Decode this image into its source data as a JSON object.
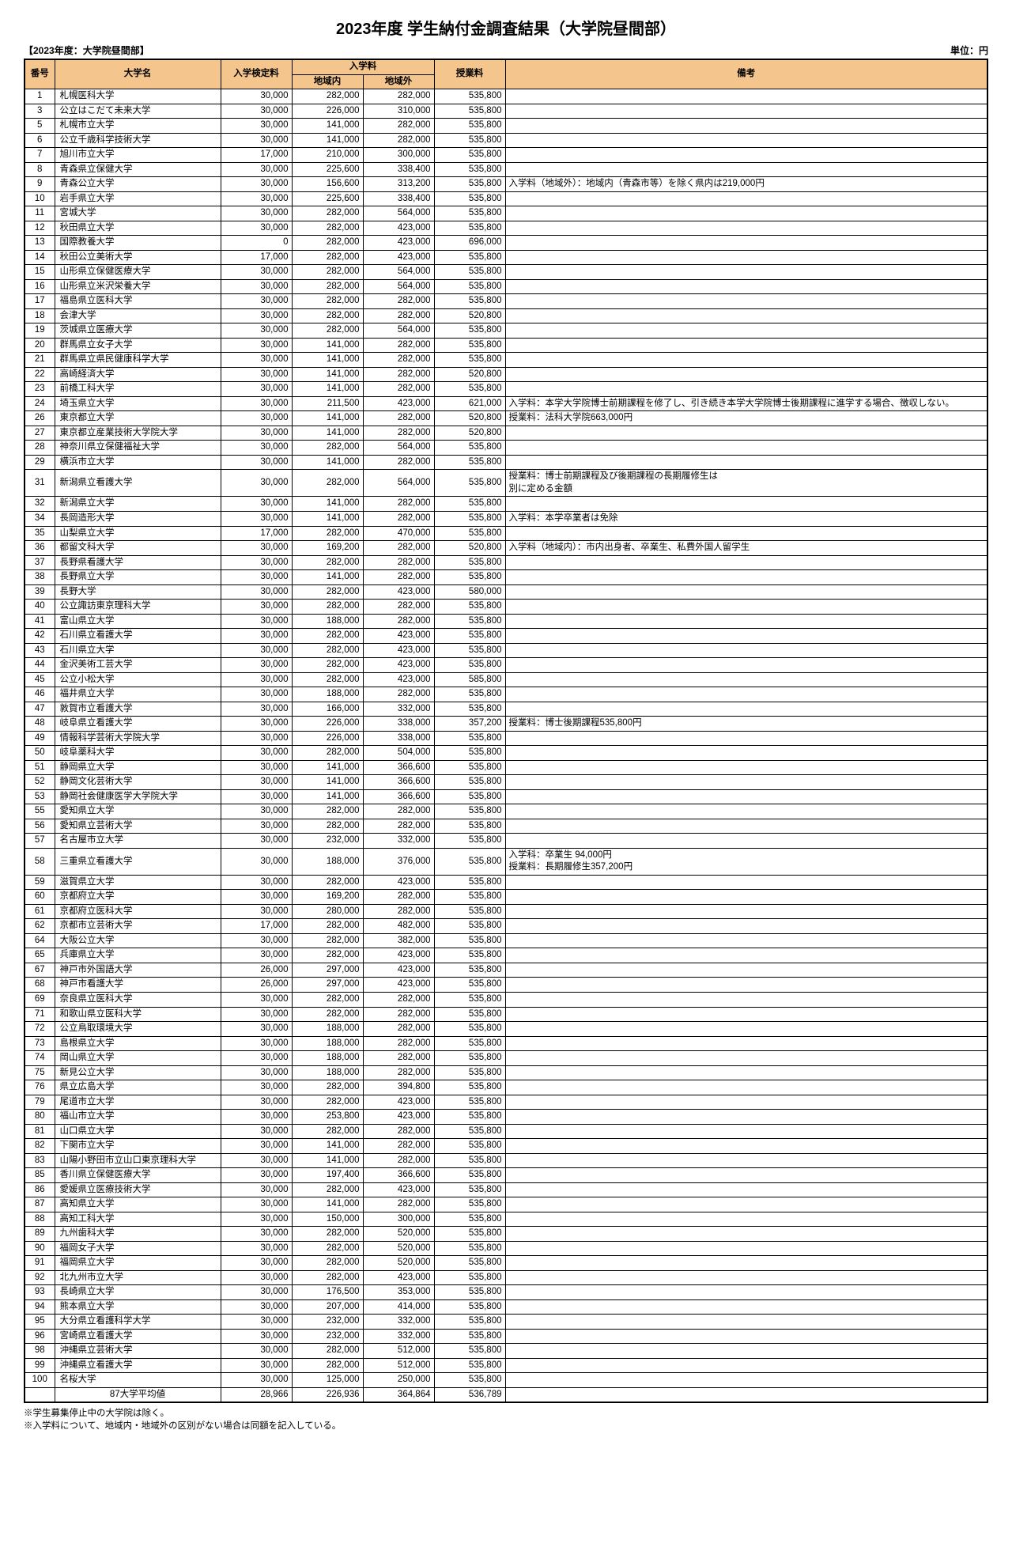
{
  "title": "2023年度 学生納付金調査結果（大学院昼間部）",
  "subheader_left": "【2023年度：大学院昼間部】",
  "subheader_right": "単位：円",
  "columns": {
    "no": "番号",
    "name": "大学名",
    "exam_fee": "入学検定料",
    "admission": "入学料",
    "admission_in": "地域内",
    "admission_out": "地域外",
    "tuition": "授業料",
    "note": "備考"
  },
  "rows": [
    {
      "no": "1",
      "name": "札幌医科大学",
      "fee": "30,000",
      "in": "282,000",
      "out": "282,000",
      "tuition": "535,800",
      "note": ""
    },
    {
      "no": "3",
      "name": "公立はこだて未来大学",
      "fee": "30,000",
      "in": "226,000",
      "out": "310,000",
      "tuition": "535,800",
      "note": ""
    },
    {
      "no": "5",
      "name": "札幌市立大学",
      "fee": "30,000",
      "in": "141,000",
      "out": "282,000",
      "tuition": "535,800",
      "note": ""
    },
    {
      "no": "6",
      "name": "公立千歳科学技術大学",
      "fee": "30,000",
      "in": "141,000",
      "out": "282,000",
      "tuition": "535,800",
      "note": ""
    },
    {
      "no": "7",
      "name": "旭川市立大学",
      "fee": "17,000",
      "in": "210,000",
      "out": "300,000",
      "tuition": "535,800",
      "note": ""
    },
    {
      "no": "8",
      "name": "青森県立保健大学",
      "fee": "30,000",
      "in": "225,600",
      "out": "338,400",
      "tuition": "535,800",
      "note": ""
    },
    {
      "no": "9",
      "name": "青森公立大学",
      "fee": "30,000",
      "in": "156,600",
      "out": "313,200",
      "tuition": "535,800",
      "note": "入学料（地域外）：地域内（青森市等）を除く県内は219,000円"
    },
    {
      "no": "10",
      "name": "岩手県立大学",
      "fee": "30,000",
      "in": "225,600",
      "out": "338,400",
      "tuition": "535,800",
      "note": ""
    },
    {
      "no": "11",
      "name": "宮城大学",
      "fee": "30,000",
      "in": "282,000",
      "out": "564,000",
      "tuition": "535,800",
      "note": ""
    },
    {
      "no": "12",
      "name": "秋田県立大学",
      "fee": "30,000",
      "in": "282,000",
      "out": "423,000",
      "tuition": "535,800",
      "note": ""
    },
    {
      "no": "13",
      "name": "国際教養大学",
      "fee": "0",
      "in": "282,000",
      "out": "423,000",
      "tuition": "696,000",
      "note": ""
    },
    {
      "no": "14",
      "name": "秋田公立美術大学",
      "fee": "17,000",
      "in": "282,000",
      "out": "423,000",
      "tuition": "535,800",
      "note": ""
    },
    {
      "no": "15",
      "name": "山形県立保健医療大学",
      "fee": "30,000",
      "in": "282,000",
      "out": "564,000",
      "tuition": "535,800",
      "note": ""
    },
    {
      "no": "16",
      "name": "山形県立米沢栄養大学",
      "fee": "30,000",
      "in": "282,000",
      "out": "564,000",
      "tuition": "535,800",
      "note": ""
    },
    {
      "no": "17",
      "name": "福島県立医科大学",
      "fee": "30,000",
      "in": "282,000",
      "out": "282,000",
      "tuition": "535,800",
      "note": ""
    },
    {
      "no": "18",
      "name": "会津大学",
      "fee": "30,000",
      "in": "282,000",
      "out": "282,000",
      "tuition": "520,800",
      "note": ""
    },
    {
      "no": "19",
      "name": "茨城県立医療大学",
      "fee": "30,000",
      "in": "282,000",
      "out": "564,000",
      "tuition": "535,800",
      "note": ""
    },
    {
      "no": "20",
      "name": "群馬県立女子大学",
      "fee": "30,000",
      "in": "141,000",
      "out": "282,000",
      "tuition": "535,800",
      "note": ""
    },
    {
      "no": "21",
      "name": "群馬県立県民健康科学大学",
      "fee": "30,000",
      "in": "141,000",
      "out": "282,000",
      "tuition": "535,800",
      "note": ""
    },
    {
      "no": "22",
      "name": "高崎経済大学",
      "fee": "30,000",
      "in": "141,000",
      "out": "282,000",
      "tuition": "520,800",
      "note": ""
    },
    {
      "no": "23",
      "name": "前橋工科大学",
      "fee": "30,000",
      "in": "141,000",
      "out": "282,000",
      "tuition": "535,800",
      "note": ""
    },
    {
      "no": "24",
      "name": "埼玉県立大学",
      "fee": "30,000",
      "in": "211,500",
      "out": "423,000",
      "tuition": "621,000",
      "note": "入学料：本学大学院博士前期課程を修了し、引き続き本学大学院博士後期課程に進学する場合、徴収しない。"
    },
    {
      "no": "26",
      "name": "東京都立大学",
      "fee": "30,000",
      "in": "141,000",
      "out": "282,000",
      "tuition": "520,800",
      "note": "授業料：法科大学院663,000円"
    },
    {
      "no": "27",
      "name": "東京都立産業技術大学院大学",
      "fee": "30,000",
      "in": "141,000",
      "out": "282,000",
      "tuition": "520,800",
      "note": ""
    },
    {
      "no": "28",
      "name": "神奈川県立保健福祉大学",
      "fee": "30,000",
      "in": "282,000",
      "out": "564,000",
      "tuition": "535,800",
      "note": ""
    },
    {
      "no": "29",
      "name": "横浜市立大学",
      "fee": "30,000",
      "in": "141,000",
      "out": "282,000",
      "tuition": "535,800",
      "note": ""
    },
    {
      "no": "31",
      "name": "新潟県立看護大学",
      "fee": "30,000",
      "in": "282,000",
      "out": "564,000",
      "tuition": "535,800",
      "note": "授業料：博士前期課程及び後期課程の長期履修生は\n別に定める金額"
    },
    {
      "no": "32",
      "name": "新潟県立大学",
      "fee": "30,000",
      "in": "141,000",
      "out": "282,000",
      "tuition": "535,800",
      "note": ""
    },
    {
      "no": "34",
      "name": "長岡造形大学",
      "fee": "30,000",
      "in": "141,000",
      "out": "282,000",
      "tuition": "535,800",
      "note": "入学料：本学卒業者は免除"
    },
    {
      "no": "35",
      "name": "山梨県立大学",
      "fee": "17,000",
      "in": "282,000",
      "out": "470,000",
      "tuition": "535,800",
      "note": ""
    },
    {
      "no": "36",
      "name": "都留文科大学",
      "fee": "30,000",
      "in": "169,200",
      "out": "282,000",
      "tuition": "520,800",
      "note": "入学料（地域内）：市内出身者、卒業生、私費外国人留学生"
    },
    {
      "no": "37",
      "name": "長野県看護大学",
      "fee": "30,000",
      "in": "282,000",
      "out": "282,000",
      "tuition": "535,800",
      "note": ""
    },
    {
      "no": "38",
      "name": "長野県立大学",
      "fee": "30,000",
      "in": "141,000",
      "out": "282,000",
      "tuition": "535,800",
      "note": ""
    },
    {
      "no": "39",
      "name": "長野大学",
      "fee": "30,000",
      "in": "282,000",
      "out": "423,000",
      "tuition": "580,000",
      "note": ""
    },
    {
      "no": "40",
      "name": "公立諏訪東京理科大学",
      "fee": "30,000",
      "in": "282,000",
      "out": "282,000",
      "tuition": "535,800",
      "note": ""
    },
    {
      "no": "41",
      "name": "富山県立大学",
      "fee": "30,000",
      "in": "188,000",
      "out": "282,000",
      "tuition": "535,800",
      "note": ""
    },
    {
      "no": "42",
      "name": "石川県立看護大学",
      "fee": "30,000",
      "in": "282,000",
      "out": "423,000",
      "tuition": "535,800",
      "note": ""
    },
    {
      "no": "43",
      "name": "石川県立大学",
      "fee": "30,000",
      "in": "282,000",
      "out": "423,000",
      "tuition": "535,800",
      "note": ""
    },
    {
      "no": "44",
      "name": "金沢美術工芸大学",
      "fee": "30,000",
      "in": "282,000",
      "out": "423,000",
      "tuition": "535,800",
      "note": ""
    },
    {
      "no": "45",
      "name": "公立小松大学",
      "fee": "30,000",
      "in": "282,000",
      "out": "423,000",
      "tuition": "585,800",
      "note": ""
    },
    {
      "no": "46",
      "name": "福井県立大学",
      "fee": "30,000",
      "in": "188,000",
      "out": "282,000",
      "tuition": "535,800",
      "note": ""
    },
    {
      "no": "47",
      "name": "敦賀市立看護大学",
      "fee": "30,000",
      "in": "166,000",
      "out": "332,000",
      "tuition": "535,800",
      "note": ""
    },
    {
      "no": "48",
      "name": "岐阜県立看護大学",
      "fee": "30,000",
      "in": "226,000",
      "out": "338,000",
      "tuition": "357,200",
      "note": "授業料：博士後期課程535,800円"
    },
    {
      "no": "49",
      "name": "情報科学芸術大学院大学",
      "fee": "30,000",
      "in": "226,000",
      "out": "338,000",
      "tuition": "535,800",
      "note": ""
    },
    {
      "no": "50",
      "name": "岐阜薬科大学",
      "fee": "30,000",
      "in": "282,000",
      "out": "504,000",
      "tuition": "535,800",
      "note": ""
    },
    {
      "no": "51",
      "name": "静岡県立大学",
      "fee": "30,000",
      "in": "141,000",
      "out": "366,600",
      "tuition": "535,800",
      "note": ""
    },
    {
      "no": "52",
      "name": "静岡文化芸術大学",
      "fee": "30,000",
      "in": "141,000",
      "out": "366,600",
      "tuition": "535,800",
      "note": ""
    },
    {
      "no": "53",
      "name": "静岡社会健康医学大学院大学",
      "fee": "30,000",
      "in": "141,000",
      "out": "366,600",
      "tuition": "535,800",
      "note": ""
    },
    {
      "no": "55",
      "name": "愛知県立大学",
      "fee": "30,000",
      "in": "282,000",
      "out": "282,000",
      "tuition": "535,800",
      "note": ""
    },
    {
      "no": "56",
      "name": "愛知県立芸術大学",
      "fee": "30,000",
      "in": "282,000",
      "out": "282,000",
      "tuition": "535,800",
      "note": ""
    },
    {
      "no": "57",
      "name": "名古屋市立大学",
      "fee": "30,000",
      "in": "232,000",
      "out": "332,000",
      "tuition": "535,800",
      "note": ""
    },
    {
      "no": "58",
      "name": "三重県立看護大学",
      "fee": "30,000",
      "in": "188,000",
      "out": "376,000",
      "tuition": "535,800",
      "note": "入学科：卒業生 94,000円\n授業料：長期履修生357,200円"
    },
    {
      "no": "59",
      "name": "滋賀県立大学",
      "fee": "30,000",
      "in": "282,000",
      "out": "423,000",
      "tuition": "535,800",
      "note": ""
    },
    {
      "no": "60",
      "name": "京都府立大学",
      "fee": "30,000",
      "in": "169,200",
      "out": "282,000",
      "tuition": "535,800",
      "note": ""
    },
    {
      "no": "61",
      "name": "京都府立医科大学",
      "fee": "30,000",
      "in": "280,000",
      "out": "282,000",
      "tuition": "535,800",
      "note": ""
    },
    {
      "no": "62",
      "name": "京都市立芸術大学",
      "fee": "17,000",
      "in": "282,000",
      "out": "482,000",
      "tuition": "535,800",
      "note": ""
    },
    {
      "no": "64",
      "name": "大阪公立大学",
      "fee": "30,000",
      "in": "282,000",
      "out": "382,000",
      "tuition": "535,800",
      "note": ""
    },
    {
      "no": "65",
      "name": "兵庫県立大学",
      "fee": "30,000",
      "in": "282,000",
      "out": "423,000",
      "tuition": "535,800",
      "note": ""
    },
    {
      "no": "67",
      "name": "神戸市外国語大学",
      "fee": "26,000",
      "in": "297,000",
      "out": "423,000",
      "tuition": "535,800",
      "note": ""
    },
    {
      "no": "68",
      "name": "神戸市看護大学",
      "fee": "26,000",
      "in": "297,000",
      "out": "423,000",
      "tuition": "535,800",
      "note": ""
    },
    {
      "no": "69",
      "name": "奈良県立医科大学",
      "fee": "30,000",
      "in": "282,000",
      "out": "282,000",
      "tuition": "535,800",
      "note": ""
    },
    {
      "no": "71",
      "name": "和歌山県立医科大学",
      "fee": "30,000",
      "in": "282,000",
      "out": "282,000",
      "tuition": "535,800",
      "note": ""
    },
    {
      "no": "72",
      "name": "公立鳥取環境大学",
      "fee": "30,000",
      "in": "188,000",
      "out": "282,000",
      "tuition": "535,800",
      "note": ""
    },
    {
      "no": "73",
      "name": "島根県立大学",
      "fee": "30,000",
      "in": "188,000",
      "out": "282,000",
      "tuition": "535,800",
      "note": ""
    },
    {
      "no": "74",
      "name": "岡山県立大学",
      "fee": "30,000",
      "in": "188,000",
      "out": "282,000",
      "tuition": "535,800",
      "note": ""
    },
    {
      "no": "75",
      "name": "新見公立大学",
      "fee": "30,000",
      "in": "188,000",
      "out": "282,000",
      "tuition": "535,800",
      "note": ""
    },
    {
      "no": "76",
      "name": "県立広島大学",
      "fee": "30,000",
      "in": "282,000",
      "out": "394,800",
      "tuition": "535,800",
      "note": ""
    },
    {
      "no": "79",
      "name": "尾道市立大学",
      "fee": "30,000",
      "in": "282,000",
      "out": "423,000",
      "tuition": "535,800",
      "note": ""
    },
    {
      "no": "80",
      "name": "福山市立大学",
      "fee": "30,000",
      "in": "253,800",
      "out": "423,000",
      "tuition": "535,800",
      "note": ""
    },
    {
      "no": "81",
      "name": "山口県立大学",
      "fee": "30,000",
      "in": "282,000",
      "out": "282,000",
      "tuition": "535,800",
      "note": ""
    },
    {
      "no": "82",
      "name": "下関市立大学",
      "fee": "30,000",
      "in": "141,000",
      "out": "282,000",
      "tuition": "535,800",
      "note": ""
    },
    {
      "no": "83",
      "name": "山陽小野田市立山口東京理科大学",
      "fee": "30,000",
      "in": "141,000",
      "out": "282,000",
      "tuition": "535,800",
      "note": ""
    },
    {
      "no": "85",
      "name": "香川県立保健医療大学",
      "fee": "30,000",
      "in": "197,400",
      "out": "366,600",
      "tuition": "535,800",
      "note": ""
    },
    {
      "no": "86",
      "name": "愛媛県立医療技術大学",
      "fee": "30,000",
      "in": "282,000",
      "out": "423,000",
      "tuition": "535,800",
      "note": ""
    },
    {
      "no": "87",
      "name": "高知県立大学",
      "fee": "30,000",
      "in": "141,000",
      "out": "282,000",
      "tuition": "535,800",
      "note": ""
    },
    {
      "no": "88",
      "name": "高知工科大学",
      "fee": "30,000",
      "in": "150,000",
      "out": "300,000",
      "tuition": "535,800",
      "note": ""
    },
    {
      "no": "89",
      "name": "九州歯科大学",
      "fee": "30,000",
      "in": "282,000",
      "out": "520,000",
      "tuition": "535,800",
      "note": ""
    },
    {
      "no": "90",
      "name": "福岡女子大学",
      "fee": "30,000",
      "in": "282,000",
      "out": "520,000",
      "tuition": "535,800",
      "note": ""
    },
    {
      "no": "91",
      "name": "福岡県立大学",
      "fee": "30,000",
      "in": "282,000",
      "out": "520,000",
      "tuition": "535,800",
      "note": ""
    },
    {
      "no": "92",
      "name": "北九州市立大学",
      "fee": "30,000",
      "in": "282,000",
      "out": "423,000",
      "tuition": "535,800",
      "note": ""
    },
    {
      "no": "93",
      "name": "長崎県立大学",
      "fee": "30,000",
      "in": "176,500",
      "out": "353,000",
      "tuition": "535,800",
      "note": ""
    },
    {
      "no": "94",
      "name": "熊本県立大学",
      "fee": "30,000",
      "in": "207,000",
      "out": "414,000",
      "tuition": "535,800",
      "note": ""
    },
    {
      "no": "95",
      "name": "大分県立看護科学大学",
      "fee": "30,000",
      "in": "232,000",
      "out": "332,000",
      "tuition": "535,800",
      "note": ""
    },
    {
      "no": "96",
      "name": "宮崎県立看護大学",
      "fee": "30,000",
      "in": "232,000",
      "out": "332,000",
      "tuition": "535,800",
      "note": ""
    },
    {
      "no": "98",
      "name": "沖縄県立芸術大学",
      "fee": "30,000",
      "in": "282,000",
      "out": "512,000",
      "tuition": "535,800",
      "note": ""
    },
    {
      "no": "99",
      "name": "沖縄県立看護大学",
      "fee": "30,000",
      "in": "282,000",
      "out": "512,000",
      "tuition": "535,800",
      "note": ""
    },
    {
      "no": "100",
      "name": "名桜大学",
      "fee": "30,000",
      "in": "125,000",
      "out": "250,000",
      "tuition": "535,800",
      "note": ""
    }
  ],
  "average": {
    "label": "87大学平均値",
    "fee": "28,966",
    "in": "226,936",
    "out": "364,864",
    "tuition": "536,789",
    "note": ""
  },
  "footnotes": [
    "※学生募集停止中の大学院は除く。",
    "※入学料について、地域内・地域外の区別がない場合は同額を記入している。"
  ]
}
